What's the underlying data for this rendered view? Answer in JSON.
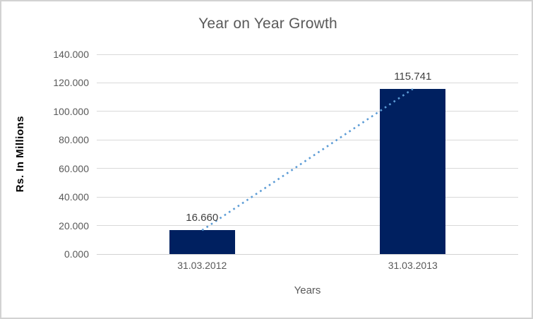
{
  "window": {
    "background": "#ffffff",
    "border_color": "#d2d2d2"
  },
  "chart_data": {
    "type": "bar",
    "title": "Year on Year Growth",
    "xlabel": "Years",
    "ylabel": "Rs. In Millions",
    "categories": [
      "31.03.2012",
      "31.03.2013"
    ],
    "values": [
      16.66,
      115.741
    ],
    "data_labels": [
      "16.660",
      "115.741"
    ],
    "ylim": [
      0,
      140
    ],
    "ytick_labels": [
      "0.000",
      "20.000",
      "40.000",
      "60.000",
      "80.000",
      "100.000",
      "120.000",
      "140.000"
    ],
    "grid": true,
    "legend": "none",
    "trendline": {
      "style": "dotted",
      "from_value": 16.66,
      "to_value": 115.741
    },
    "styles": {
      "bar_color": "#002060",
      "trendline_color": "#5b9bd5",
      "gridline_color": "#d9d9d9",
      "axis_line_color": "#d3d3d3",
      "title_color": "#595959",
      "tick_color": "#595959",
      "data_label_color": "#404040",
      "xlabel_color": "#595959",
      "ylabel_color": "#000000"
    }
  }
}
